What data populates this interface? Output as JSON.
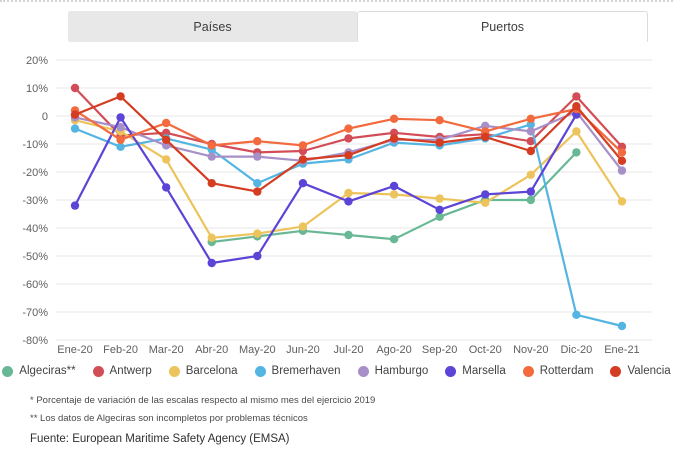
{
  "tabs": {
    "paises": "Países",
    "puertos": "Puertos"
  },
  "chart_data": {
    "type": "line",
    "title": "",
    "xlabel": "",
    "ylabel": "",
    "ylim": [
      -80,
      20
    ],
    "grid": true,
    "legend_position": "bottom",
    "categories": [
      "Ene-20",
      "Feb-20",
      "Mar-20",
      "Abr-20",
      "May-20",
      "Jun-20",
      "Jul-20",
      "Ago-20",
      "Sep-20",
      "Oct-20",
      "Nov-20",
      "Dic-20",
      "Ene-21"
    ],
    "y_ticks": [
      {
        "label": "20%",
        "value": 20
      },
      {
        "label": "10%",
        "value": 10
      },
      {
        "label": "0",
        "value": 0
      },
      {
        "label": "-10%",
        "value": -10
      },
      {
        "label": "-20%",
        "value": -20
      },
      {
        "label": "-30%",
        "value": -30
      },
      {
        "label": "-40%",
        "value": -40
      },
      {
        "label": "-50%",
        "value": -50
      },
      {
        "label": "-60%",
        "value": -60
      },
      {
        "label": "-70%",
        "value": -70
      },
      {
        "label": "-80%",
        "value": -80
      }
    ],
    "series": [
      {
        "name": "Algeciras**",
        "color": "#68b795",
        "values": [
          null,
          null,
          null,
          -45,
          -43,
          -41,
          -42.5,
          -44,
          -36,
          -30,
          -30,
          -13,
          null
        ]
      },
      {
        "name": "Antwerp",
        "color": "#d24d57",
        "values": [
          10,
          -7,
          -6,
          -10,
          -13,
          -12.5,
          -8,
          -6,
          -7.5,
          -6.5,
          -9,
          7,
          -11
        ]
      },
      {
        "name": "Barcelona",
        "color": "#edc35c",
        "values": [
          -1.5,
          -5.5,
          -15.5,
          -43.5,
          -42,
          -39.5,
          -27.5,
          -28,
          -29.5,
          -31,
          -21,
          -5.5,
          -30.5
        ]
      },
      {
        "name": "Bremerhaven",
        "color": "#55b5e2",
        "values": [
          -4.5,
          -11,
          -8,
          -12,
          -24,
          -17,
          -15.5,
          -9.5,
          -10.5,
          -8,
          -3,
          -71,
          -75
        ]
      },
      {
        "name": "Hamburgo",
        "color": "#a78fc8",
        "values": [
          -0.5,
          -4,
          -10.5,
          -14.5,
          -14.5,
          -16,
          -13,
          -8.5,
          -8.5,
          -3.5,
          -5.5,
          1.5,
          -19.5
        ]
      },
      {
        "name": "Marsella",
        "color": "#5b44d6",
        "values": [
          -32,
          -0.5,
          -25.5,
          -52.5,
          -50,
          -24,
          -30.5,
          -25,
          -33.5,
          -28,
          -27,
          0.5,
          null
        ]
      },
      {
        "name": "Rotterdam",
        "color": "#f26a3d",
        "values": [
          2,
          -8.5,
          -2.5,
          -10.5,
          -9,
          -10.5,
          -4.5,
          -1,
          -1.5,
          -5.5,
          -1,
          2.5,
          -13
        ]
      },
      {
        "name": "Valencia",
        "color": "#d43d22",
        "values": [
          0.5,
          7,
          -8.5,
          -24,
          -27,
          -15.5,
          -14,
          -8,
          -9.5,
          -7.5,
          -12.5,
          3.5,
          -16
        ]
      }
    ]
  },
  "footnotes": {
    "line1": "* Porcentaje de variación de las escalas respecto al mismo mes del ejercicio 2019",
    "line2": "** Los datos de Algeciras son incompletos por problemas técnicos",
    "source": "Fuente: European Maritime Safety Agency (EMSA)"
  }
}
